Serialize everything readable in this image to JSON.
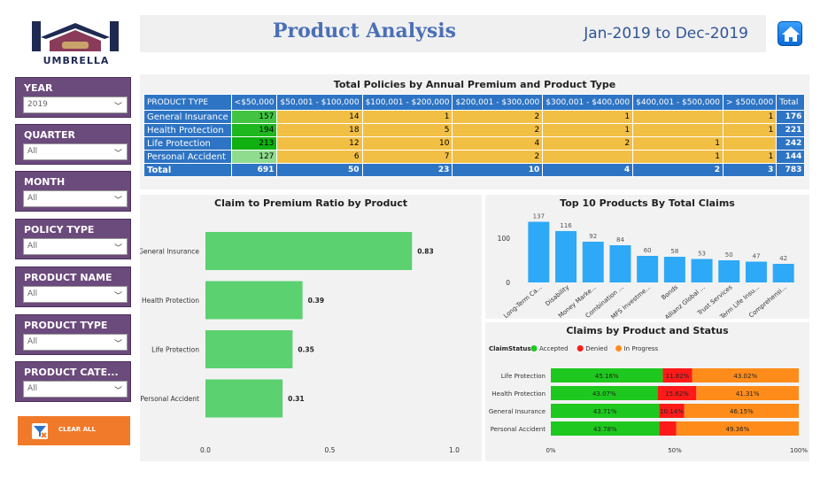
{
  "logo": {
    "text": "UMBRELLA"
  },
  "header": {
    "title": "Product Analysis",
    "date_range": "Jan-2019 to Dec-2019"
  },
  "slicers": [
    {
      "label": "YEAR",
      "value": "2019"
    },
    {
      "label": "QUARTER",
      "value": "All"
    },
    {
      "label": "MONTH",
      "value": "All"
    },
    {
      "label": "POLICY TYPE",
      "value": "All"
    },
    {
      "label": "PRODUCT NAME",
      "value": "All"
    },
    {
      "label": "PRODUCT TYPE",
      "value": "All"
    },
    {
      "label": "PRODUCT CATE...",
      "value": "All"
    }
  ],
  "clear_all": {
    "label": "CLEAR ALL"
  },
  "colors": {
    "accent": "#2e74c4",
    "slicer_bg": "#6b4a7c",
    "clear_btn": "#f07a2a",
    "cell": "#f2bf45",
    "green": "#5bd170",
    "bar_blue": "#2ea9f7",
    "accepted": "#1ec81e",
    "denied": "#ff1a1a",
    "in_progress": "#ff8c1a"
  },
  "policy_table": {
    "title": "Total Policies by Annual Premium and Product Type",
    "headers": [
      "PRODUCT TYPE",
      "<$50,000",
      "$50,001 - $100,000",
      "$100,001 - $200,000",
      "$200,001 - $300,000",
      "$300,001 - $400,000",
      "$400,001 - $500,000",
      "> $500,000",
      "Total"
    ],
    "rows": [
      [
        "General Insurance",
        "157",
        "14",
        "1",
        "2",
        "1",
        "",
        "1",
        "176"
      ],
      [
        "Health Protection",
        "194",
        "18",
        "5",
        "2",
        "1",
        "",
        "1",
        "221"
      ],
      [
        "Life Protection",
        "213",
        "12",
        "10",
        "4",
        "2",
        "1",
        "",
        "242"
      ],
      [
        "Personal Accident",
        "127",
        "6",
        "7",
        "2",
        "",
        "1",
        "1",
        "144"
      ]
    ],
    "total_row": [
      "Total",
      "691",
      "50",
      "23",
      "10",
      "4",
      "2",
      "3",
      "783"
    ]
  },
  "chart_data": [
    {
      "type": "bar",
      "orientation": "horizontal",
      "title": "Claim to Premium Ratio by Product",
      "categories": [
        "General Insurance",
        "Health Protection",
        "Life Protection",
        "Personal Accident"
      ],
      "values": [
        0.83,
        0.39,
        0.35,
        0.31
      ],
      "labels": [
        "0.83",
        "0.39",
        "0.35",
        "0.31"
      ],
      "xlim": [
        0,
        1.0
      ],
      "xticks": [
        "0.0",
        "0.5",
        "1.0"
      ],
      "grid": false
    },
    {
      "type": "bar",
      "title": "Top 10 Products By Total Claims",
      "categories": [
        "Long-Term Ca...",
        "Disability",
        "Money Marke...",
        "Combination ...",
        "MFS Investme...",
        "Bonds",
        "Allianz Global ...",
        "Trust Services",
        "Term Life Insu...",
        "Comprehensi..."
      ],
      "values": [
        137,
        116,
        92,
        84,
        60,
        58,
        53,
        50,
        47,
        42
      ],
      "labels": [
        "137",
        "116",
        "92",
        "84",
        "60",
        "58",
        "53",
        "50",
        "47",
        "42"
      ],
      "ylim": [
        0,
        150
      ],
      "yticks": [
        "0",
        "100"
      ],
      "grid": false
    },
    {
      "type": "bar",
      "stacked": "100%",
      "orientation": "horizontal",
      "title": "Claims by Product and Status",
      "legend_title": "ClaimStatus",
      "legend_position": "top-left",
      "categories": [
        "Life Protection",
        "Health Protection",
        "General Insurance",
        "Personal Accident"
      ],
      "series": [
        {
          "name": "Accepted",
          "values": [
            45.16,
            43.07,
            43.71,
            43.78
          ],
          "labels": [
            "45.16%",
            "43.07%",
            "43.71%",
            "43.78%"
          ]
        },
        {
          "name": "Denied",
          "values": [
            11.82,
            15.62,
            10.14,
            6.86
          ],
          "labels": [
            "11.82%",
            "15.62%",
            "10.14%",
            ""
          ]
        },
        {
          "name": "In Progress",
          "values": [
            43.02,
            41.31,
            46.15,
            49.36
          ],
          "labels": [
            "43.02%",
            "41.31%",
            "46.15%",
            "49.36%"
          ]
        }
      ],
      "xticks": [
        "0%",
        "50%",
        "100%"
      ]
    }
  ]
}
